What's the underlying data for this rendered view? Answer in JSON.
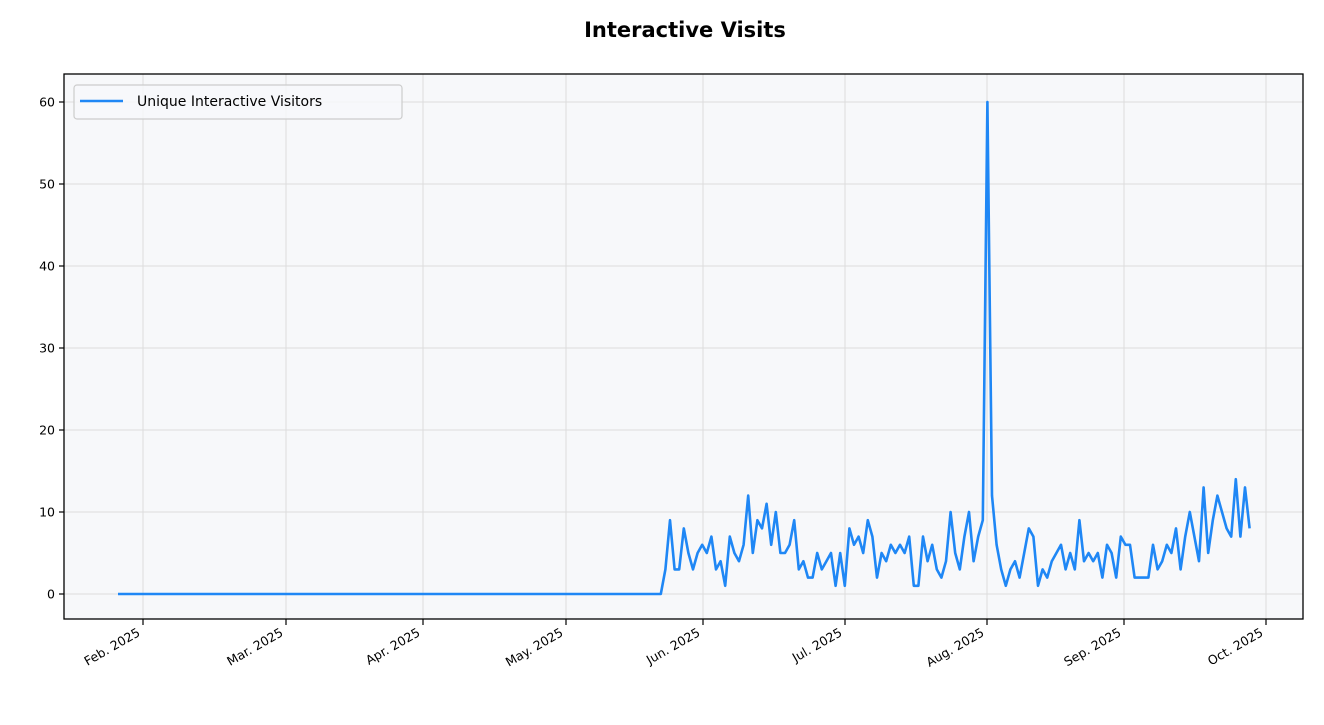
{
  "chart_data": {
    "type": "line",
    "title": "Interactive Visits",
    "xlabel": "",
    "ylabel": "",
    "ylim": [
      -3,
      63
    ],
    "yticks": [
      0,
      10,
      20,
      30,
      40,
      50,
      60
    ],
    "xticks": [
      "Feb. 2025",
      "Mar. 2025",
      "Apr. 2025",
      "May. 2025",
      "Jun. 2025",
      "Jul. 2025",
      "Aug. 2025",
      "Sep. 2025",
      "Oct. 2025"
    ],
    "x_start": "2025-01-27",
    "x_step": "1 day",
    "grid": true,
    "legend_position": "upper left",
    "series": [
      {
        "name": "Unique Interactive Visitors",
        "color": "#1f87f5",
        "leading_zero_days": 119,
        "values_after_zeros": [
          3,
          9,
          3,
          3,
          8,
          5,
          3,
          5,
          6,
          5,
          7,
          3,
          4,
          1,
          7,
          5,
          4,
          6,
          12,
          5,
          9,
          8,
          11,
          6,
          10,
          5,
          5,
          6,
          9,
          3,
          4,
          2,
          2,
          5,
          3,
          4,
          5,
          1,
          5,
          1,
          8,
          6,
          7,
          5,
          9,
          7,
          2,
          5,
          4,
          6,
          5,
          6,
          5,
          7,
          1,
          1,
          7,
          4,
          6,
          3,
          2,
          4,
          10,
          5,
          3,
          7,
          10,
          4,
          7,
          9,
          60,
          12,
          6,
          3,
          1,
          3,
          4,
          2,
          5,
          8,
          7,
          1,
          3,
          2,
          4,
          5,
          6,
          3,
          5,
          3,
          9,
          4,
          5,
          4,
          5,
          2,
          6,
          5,
          2,
          7,
          6,
          6,
          2,
          2,
          2,
          2,
          6,
          3,
          4,
          6,
          5,
          8,
          3,
          7,
          10,
          7,
          4,
          13,
          5,
          9,
          12,
          10,
          8,
          7,
          14,
          7,
          13,
          8
        ]
      }
    ]
  },
  "colors": {
    "plot_background": "#f7f8fa",
    "grid": "#dcdcdc",
    "line": "#1f87f5"
  }
}
